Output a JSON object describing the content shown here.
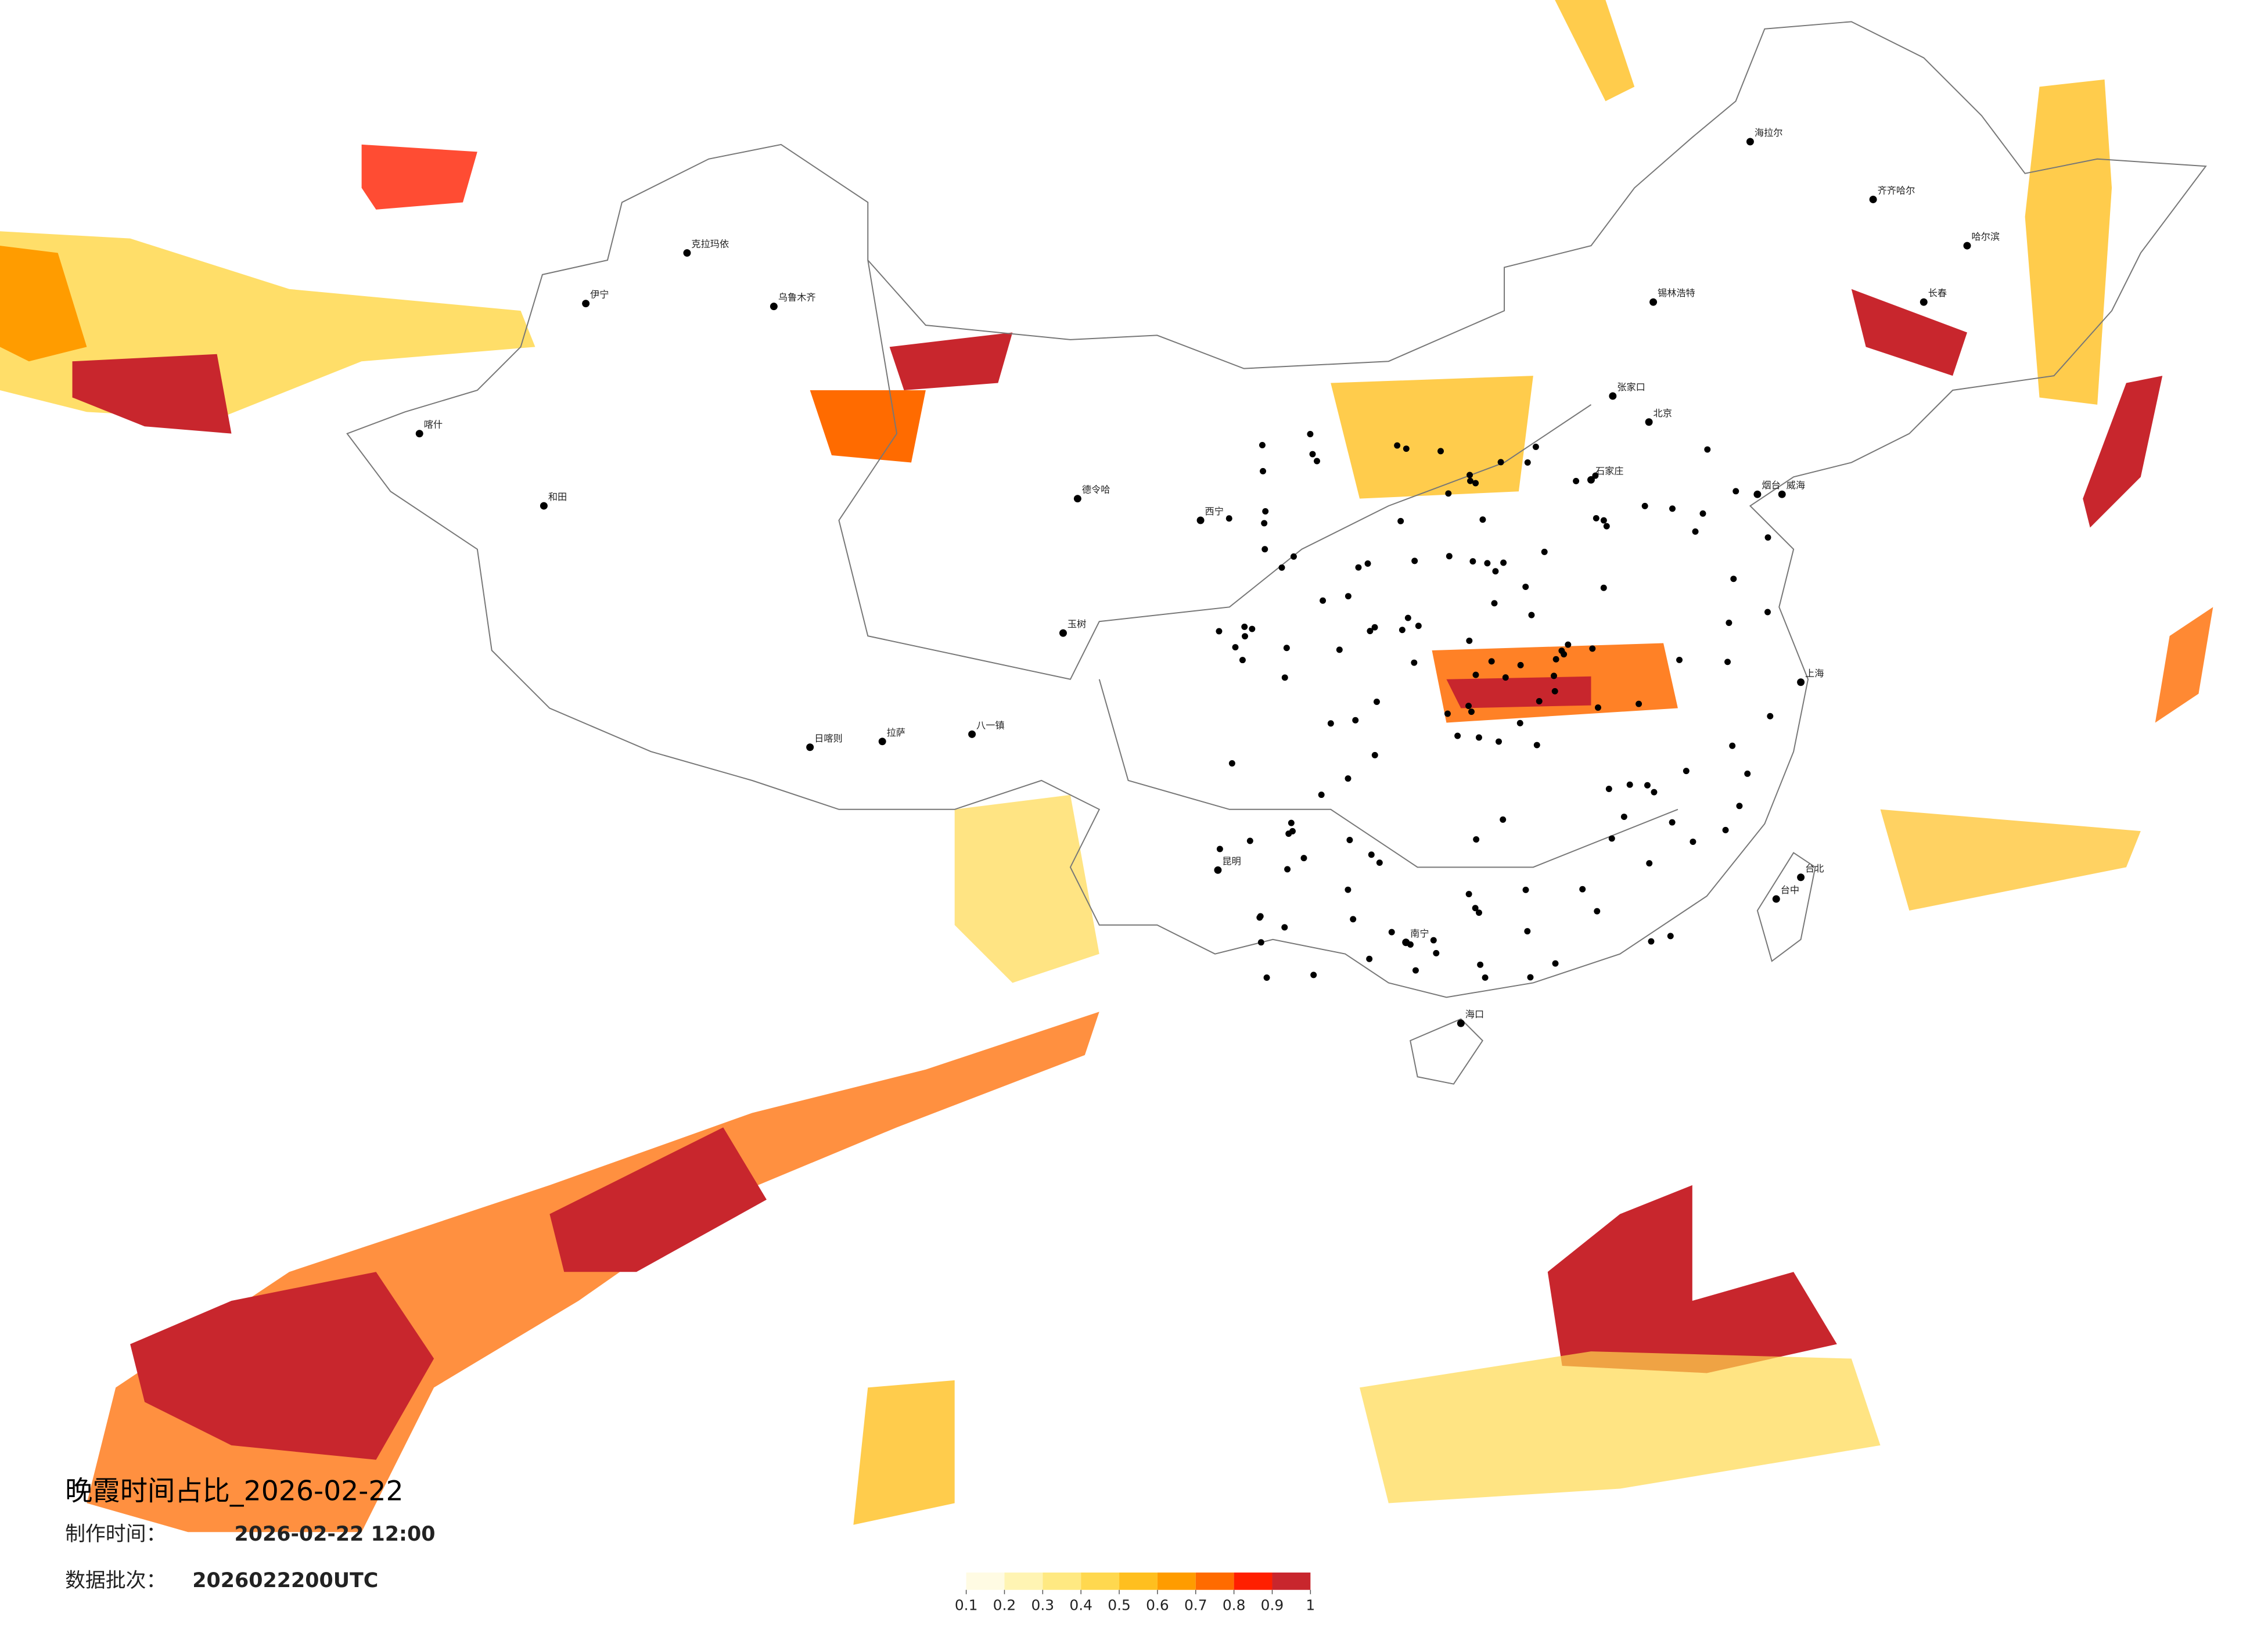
{
  "header": {
    "title": "晚霞时间占比_2026-02-22",
    "made_label": "制作时间：",
    "made_time": "2026-02-22 12:00",
    "batch_label": "数据批次：",
    "batch": "2026022200UTC"
  },
  "colorbar": {
    "ticks": [
      0.1,
      0.2,
      0.3,
      0.4,
      0.5,
      0.6,
      0.7,
      0.8,
      0.9,
      1
    ],
    "colors": [
      "#fffbe3",
      "#fff4b3",
      "#ffe982",
      "#ffd84f",
      "#ffbf1f",
      "#ff9c00",
      "#ff6b00",
      "#ff1f00",
      "#c8262d"
    ]
  },
  "cities": [
    "克拉玛依",
    "伊宁",
    "乌鲁木齐",
    "喀什",
    "和田",
    "德令哈",
    "西宁",
    "玉树",
    "拉萨",
    "日喀则",
    "八一镇",
    "海拉尔",
    "齐齐哈尔",
    "哈尔滨",
    "长春",
    "锡林浩特",
    "张家口",
    "北京",
    "石家庄",
    "烟台",
    "威海",
    "上海",
    "昆明",
    "南宁",
    "海口",
    "台中",
    "台北"
  ]
}
